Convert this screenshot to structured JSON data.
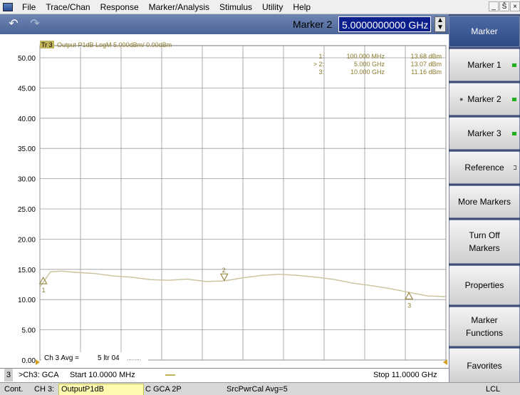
{
  "menubar": {
    "items": [
      "File",
      "Trace/Chan",
      "Response",
      "Marker/Analysis",
      "Stimulus",
      "Utility",
      "Help"
    ],
    "window_controls": [
      "_",
      "Š",
      "×"
    ]
  },
  "toolbar": {
    "undo_icon": "undo-icon",
    "redo_icon": "redo-icon",
    "marker_label": "Marker 2",
    "marker_value": "5.0000000000 GHz"
  },
  "softkeys": {
    "header": "Marker",
    "items": [
      {
        "label": "Marker 1",
        "indicator": "on"
      },
      {
        "label": "Marker 2",
        "indicator": "on",
        "active": true
      },
      {
        "label": "Marker 3",
        "indicator": "on"
      },
      {
        "label": "Reference",
        "indicator": "off"
      },
      {
        "label": "More Markers",
        "indicator": "arrow"
      },
      {
        "label": "Turn Off Markers",
        "line1": "Turn Off",
        "line2": "Markers",
        "indicator": "arrow"
      },
      {
        "label": "Properties",
        "indicator": "arrow"
      },
      {
        "label": "Marker Functions",
        "line1": "Marker",
        "line2": "Functions",
        "indicator": "arrow"
      },
      {
        "label": "Favorites",
        "indicator": "none"
      }
    ]
  },
  "trace": {
    "header": "Output P1dB LogM 5.000dBm/  0.00dBm",
    "tr_badge": "Tr 3",
    "marker_readouts": [
      {
        "id": "1:",
        "freq": "100.000 MHz",
        "val": "13.68 dBm"
      },
      {
        "id": "> 2:",
        "freq": "5.000 GHz",
        "val": "13.07 dBm"
      },
      {
        "id": "3:",
        "freq": "10.000 GHz",
        "val": "11.16 dBm"
      }
    ],
    "avg_label": "Ch 3 Avg =",
    "avg_value": "5 ltr 04",
    "avg_dots": ".........",
    "channel_number": "3"
  },
  "chart_data": {
    "type": "line",
    "y_tick_labels": [
      "50.00",
      "45.00",
      "40.00",
      "35.00",
      "30.00",
      "25.00",
      "20.00",
      "15.00",
      "10.00",
      "5.00",
      "0.00"
    ],
    "ylim": [
      0,
      50
    ],
    "xlim": [
      0.01,
      11
    ],
    "grid": true,
    "series": [
      {
        "x": [
          0.01,
          0.3,
          0.6,
          1.0,
          1.5,
          2.0,
          2.5,
          3.0,
          3.5,
          4.0,
          4.5,
          5.0,
          5.5,
          6.0,
          6.5,
          7.0,
          7.5,
          8.0,
          8.5,
          9.0,
          9.5,
          10.0,
          10.5,
          11.0
        ],
        "y": [
          12.1,
          14.6,
          14.7,
          14.5,
          14.3,
          13.9,
          13.7,
          13.3,
          13.2,
          13.4,
          13.0,
          13.1,
          13.6,
          14.0,
          14.2,
          14.0,
          13.7,
          13.3,
          12.7,
          12.3,
          11.8,
          11.2,
          10.6,
          10.5
        ],
        "color": "#c9c29a"
      }
    ],
    "markers": [
      {
        "num": "1",
        "x": 0.1,
        "y": 13.68
      },
      {
        "num": "2",
        "x": 5.0,
        "y": 13.07
      },
      {
        "num": "3",
        "x": 10.0,
        "y": 11.16
      }
    ]
  },
  "status_line1": {
    "channel_num": "3",
    "channel": ">Ch3: GCA",
    "start": "Start  10.0000 MHz",
    "stop": "Stop  11.0000 GHz"
  },
  "status_line2": {
    "mode": "Cont.",
    "channel": "CH 3:",
    "trace": "OutputP1dB",
    "meas": "C GCA 2P",
    "src": "SrcPwrCal Avg=5",
    "remote": "LCL"
  },
  "colors": {
    "trace": "#c9c29a",
    "marker_text": "#8a7a2a",
    "grid": "#9a9a9a",
    "toolbar": "#4c6496",
    "softkey_panel": "#3e4e7a",
    "marker_input": "#0c1f8c"
  }
}
